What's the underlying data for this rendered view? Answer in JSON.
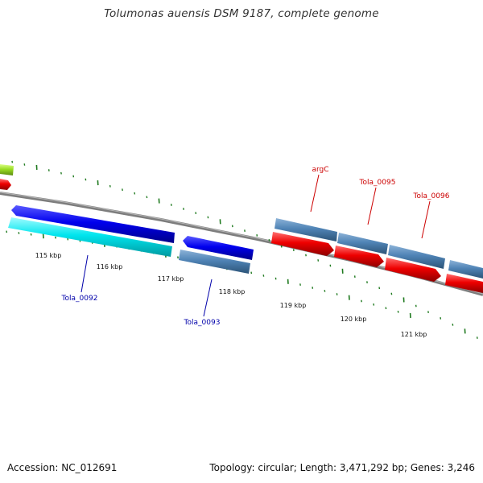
{
  "title": "Tolumonas auensis DSM 9187, complete genome",
  "footer": {
    "accession": "Accession: NC_012691",
    "topology": "Topology: circular; Length: 3,471,292 bp; Genes: 3,246"
  },
  "colors": {
    "backbone": "#808080",
    "tick": "#1f7a1f",
    "label_forward": "#cc0000",
    "label_reverse": "#0000aa",
    "gene_blue": "#0000ee",
    "gene_cyan": "#00e5ee",
    "gene_steel": "#4f83b5",
    "gene_red": "#ee0000",
    "gene_green": "#99dd22"
  },
  "scale": {
    "ticks": [
      "115 kbp",
      "116 kbp",
      "117 kbp",
      "118 kbp",
      "119 kbp",
      "120 kbp",
      "121 kbp"
    ]
  },
  "genes": {
    "forward": [
      {
        "label": "argC",
        "color": "steel"
      },
      {
        "label": "Tola_0095",
        "color": "steel"
      },
      {
        "label": "Tola_0096",
        "color": "steel"
      }
    ],
    "reverse": [
      {
        "label": "Tola_0092",
        "color": "cyan"
      },
      {
        "label": "Tola_0093",
        "color": "steel"
      }
    ]
  }
}
